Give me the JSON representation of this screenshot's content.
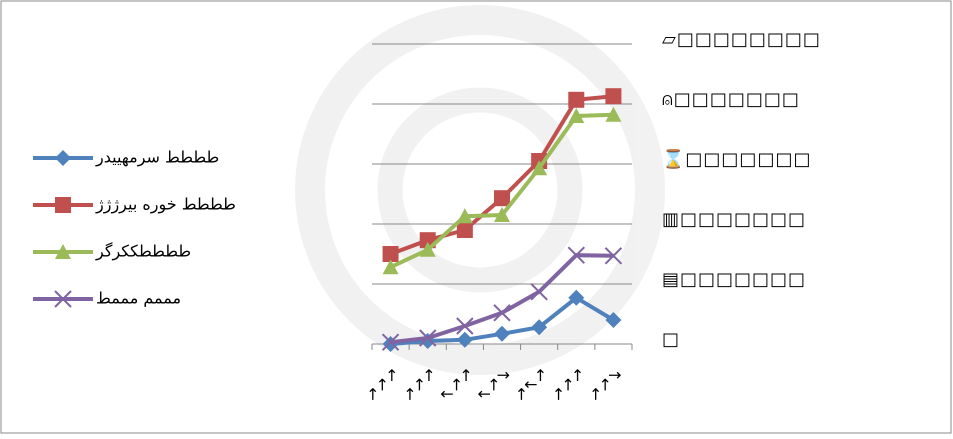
{
  "chart_data": {
    "type": "line",
    "categories": [
      "↗↗↗",
      "↗↗↗",
      "↖↗↗",
      "↖↗↘",
      "↗↖↗",
      "↗↗↗",
      "↗↗↘"
    ],
    "series": [
      {
        "name": "طططط سرمهییدر",
        "color": "#4f81bd",
        "marker": "diamond",
        "values": [
          0,
          0.05,
          0.07,
          0.17,
          0.28,
          0.77,
          0.4
        ]
      },
      {
        "name": "طططط خوره بیرژژژ",
        "color": "#c0504d",
        "marker": "square",
        "values": [
          1.5,
          1.73,
          1.9,
          2.43,
          3.05,
          4.07,
          4.13
        ]
      },
      {
        "name": "ططططککرگر",
        "color": "#9bbb59",
        "marker": "triangle",
        "values": [
          1.28,
          1.57,
          2.13,
          2.15,
          2.93,
          3.8,
          3.82
        ]
      },
      {
        "name": "مممم مممط",
        "color": "#8064a2",
        "marker": "x",
        "values": [
          0.03,
          0.1,
          0.3,
          0.52,
          0.87,
          1.48,
          1.47
        ]
      }
    ],
    "ylim": [
      0,
      5
    ],
    "yticks": [
      {
        "value": 0,
        "label": "□"
      },
      {
        "value": 1,
        "label": "▤□□□□□□□"
      },
      {
        "value": 2,
        "label": "▥□□□□□□□"
      },
      {
        "value": 3,
        "label": "⌛□□□□□□□"
      },
      {
        "value": 4,
        "label": "⍝□□□□□□□"
      },
      {
        "value": 5,
        "label": "▱□□□□□□□□"
      }
    ],
    "grid": true,
    "legend": "left"
  }
}
